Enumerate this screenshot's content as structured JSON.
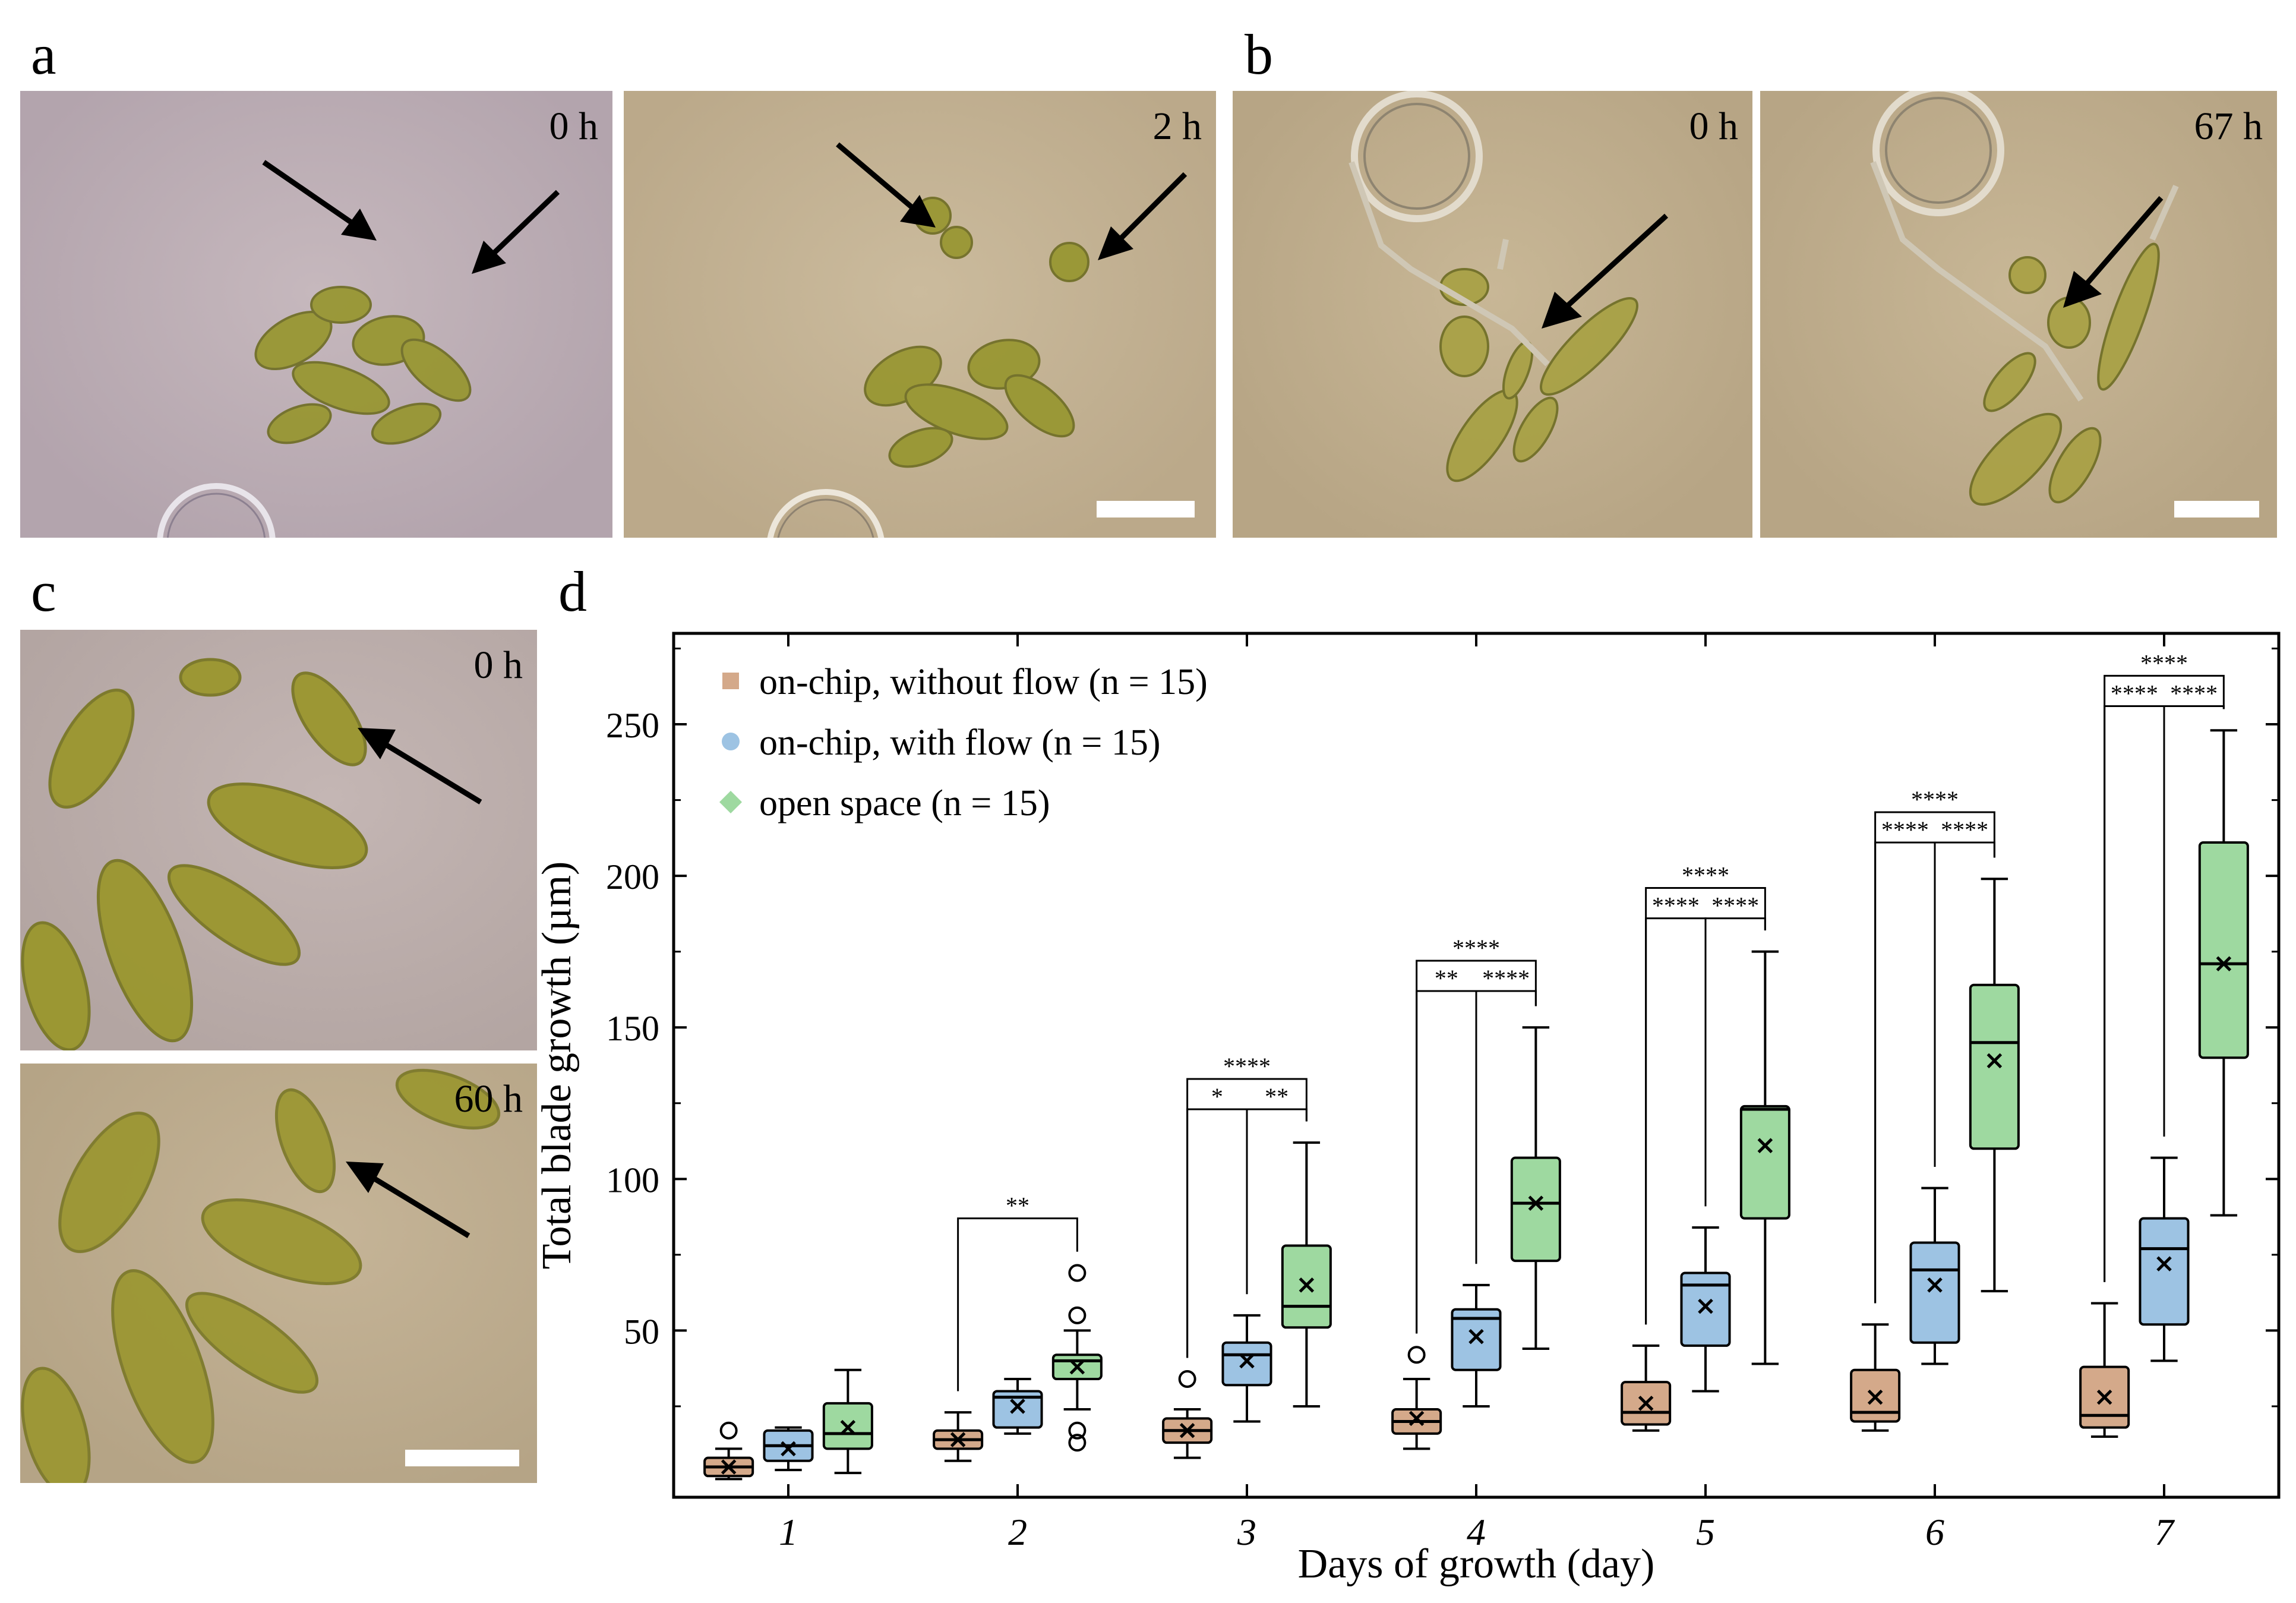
{
  "panels": {
    "a": {
      "label": "a",
      "t0": "0 h",
      "t1": "2 h"
    },
    "b": {
      "label": "b",
      "t0": "0 h",
      "t1": "67 h"
    },
    "c": {
      "label": "c",
      "t0": "0 h",
      "t1": "60 h"
    },
    "d": {
      "label": "d"
    }
  },
  "colors": {
    "without_flow": "#d4a98a",
    "with_flow": "#9dc3e3",
    "open_space": "#9ed9a0",
    "micrograph_a": "#b9aab2",
    "micrograph_warm": "#c2b193",
    "micrograph_c": "#bba9a8",
    "algae": "#8a8a2e"
  },
  "icons": {
    "scale": "scale-bar",
    "arrow": "arrow-icon"
  },
  "chart_data": {
    "type": "box",
    "title": "",
    "xlabel": "Days of growth (day)",
    "ylabel": "Total blade growth (µm)",
    "categories": [
      "1",
      "2",
      "3",
      "4",
      "5",
      "6",
      "7"
    ],
    "ylim": [
      -5,
      280
    ],
    "yticks": [
      50,
      100,
      150,
      200,
      250
    ],
    "legend_position": "top-left",
    "series": [
      {
        "name": "on-chip, without flow (n = 15)",
        "marker": "square",
        "color": "#d4a98a",
        "boxes": [
          {
            "whislo": 1,
            "q1": 2,
            "med": 5,
            "q3": 8,
            "whishi": 11,
            "mean": 5,
            "fliers": [
              17
            ]
          },
          {
            "whislo": 7,
            "q1": 11,
            "med": 14,
            "q3": 17,
            "whishi": 23,
            "mean": 14,
            "fliers": []
          },
          {
            "whislo": 8,
            "q1": 13,
            "med": 17,
            "q3": 21,
            "whishi": 24,
            "mean": 17,
            "fliers": [
              34
            ]
          },
          {
            "whislo": 11,
            "q1": 16,
            "med": 20,
            "q3": 24,
            "whishi": 34,
            "mean": 21,
            "fliers": [
              42
            ]
          },
          {
            "whislo": 17,
            "q1": 19,
            "med": 23,
            "q3": 33,
            "whishi": 45,
            "mean": 26,
            "fliers": []
          },
          {
            "whislo": 17,
            "q1": 20,
            "med": 23,
            "q3": 37,
            "whishi": 52,
            "mean": 28,
            "fliers": []
          },
          {
            "whislo": 15,
            "q1": 18,
            "med": 22,
            "q3": 38,
            "whishi": 59,
            "mean": 28,
            "fliers": []
          }
        ]
      },
      {
        "name": "on-chip, with flow (n = 15)",
        "marker": "circle",
        "color": "#9dc3e3",
        "boxes": [
          {
            "whislo": 4,
            "q1": 7,
            "med": 12,
            "q3": 17,
            "whishi": 18,
            "mean": 11,
            "fliers": []
          },
          {
            "whislo": 16,
            "q1": 18,
            "med": 28,
            "q3": 30,
            "whishi": 34,
            "mean": 25,
            "fliers": []
          },
          {
            "whislo": 20,
            "q1": 32,
            "med": 42,
            "q3": 46,
            "whishi": 55,
            "mean": 40,
            "fliers": []
          },
          {
            "whislo": 25,
            "q1": 37,
            "med": 54,
            "q3": 57,
            "whishi": 65,
            "mean": 48,
            "fliers": []
          },
          {
            "whislo": 30,
            "q1": 45,
            "med": 65,
            "q3": 69,
            "whishi": 84,
            "mean": 58,
            "fliers": []
          },
          {
            "whislo": 39,
            "q1": 46,
            "med": 70,
            "q3": 79,
            "whishi": 97,
            "mean": 65,
            "fliers": []
          },
          {
            "whislo": 40,
            "q1": 52,
            "med": 77,
            "q3": 87,
            "whishi": 107,
            "mean": 72,
            "fliers": []
          }
        ]
      },
      {
        "name": "open space (n = 15)",
        "marker": "diamond",
        "color": "#9ed9a0",
        "boxes": [
          {
            "whislo": 3,
            "q1": 11,
            "med": 16,
            "q3": 26,
            "whishi": 37,
            "mean": 18,
            "fliers": []
          },
          {
            "whislo": 24,
            "q1": 34,
            "med": 40,
            "q3": 42,
            "whishi": 50,
            "mean": 38,
            "fliers": [
              69,
              55,
              17,
              13
            ]
          },
          {
            "whislo": 25,
            "q1": 51,
            "med": 58,
            "q3": 78,
            "whishi": 112,
            "mean": 65,
            "fliers": []
          },
          {
            "whislo": 44,
            "q1": 73,
            "med": 92,
            "q3": 107,
            "whishi": 150,
            "mean": 92,
            "fliers": []
          },
          {
            "whislo": 39,
            "q1": 87,
            "med": 123,
            "q3": 124,
            "whishi": 175,
            "mean": 111,
            "fliers": []
          },
          {
            "whislo": 63,
            "q1": 110,
            "med": 145,
            "q3": 164,
            "whishi": 199,
            "mean": 139,
            "fliers": []
          },
          {
            "whislo": 88,
            "q1": 140,
            "med": 171,
            "q3": 211,
            "whishi": 248,
            "mean": 171,
            "fliers": []
          }
        ]
      }
    ],
    "significance": [
      {
        "day": 2,
        "brackets": [
          {
            "pair": "1-3",
            "label": "**",
            "y": 87
          }
        ]
      },
      {
        "day": 3,
        "brackets": [
          {
            "pair": "1-2",
            "label": "*",
            "y": 123
          },
          {
            "pair": "2-3",
            "label": "**",
            "y": 123
          },
          {
            "pair": "1-3",
            "label": "****",
            "y": 133
          }
        ]
      },
      {
        "day": 4,
        "brackets": [
          {
            "pair": "1-2",
            "label": "**",
            "y": 162
          },
          {
            "pair": "2-3",
            "label": "****",
            "y": 162
          },
          {
            "pair": "1-3",
            "label": "****",
            "y": 172
          }
        ]
      },
      {
        "day": 5,
        "brackets": [
          {
            "pair": "1-2",
            "label": "****",
            "y": 186
          },
          {
            "pair": "2-3",
            "label": "****",
            "y": 186
          },
          {
            "pair": "1-3",
            "label": "****",
            "y": 196
          }
        ]
      },
      {
        "day": 6,
        "brackets": [
          {
            "pair": "1-2",
            "label": "****",
            "y": 211
          },
          {
            "pair": "2-3",
            "label": "****",
            "y": 211
          },
          {
            "pair": "1-3",
            "label": "****",
            "y": 221
          }
        ]
      },
      {
        "day": 7,
        "brackets": [
          {
            "pair": "1-2",
            "label": "****",
            "y": 256
          },
          {
            "pair": "2-3",
            "label": "****",
            "y": 256
          },
          {
            "pair": "1-3",
            "label": "****",
            "y": 266
          }
        ]
      }
    ]
  }
}
